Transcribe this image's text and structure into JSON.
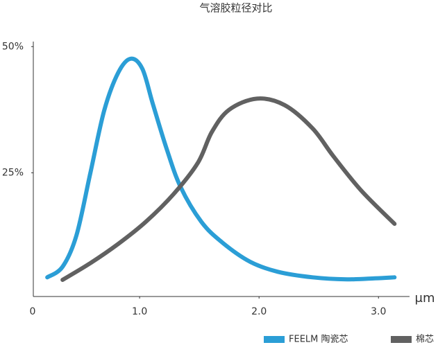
{
  "chart_data": {
    "type": "line",
    "title": "气溶胶粒径对比",
    "x_label": "μm",
    "origin_label": "0",
    "xlim": [
      0.11,
      3.26
    ],
    "ylim": [
      0.5,
      51
    ],
    "xticks": [
      {
        "value": 1,
        "label": "1.0"
      },
      {
        "value": 2,
        "label": "2.0"
      },
      {
        "value": 3,
        "label": "3.0"
      }
    ],
    "yticks": [
      {
        "value": 25,
        "label": "25%"
      },
      {
        "value": 50,
        "label": "50%"
      }
    ],
    "legend": "bottom-right",
    "series": [
      {
        "name": "FEELM 陶瓷芯",
        "color": "#2b9ed6",
        "x": [
          0.227,
          0.355,
          0.471,
          0.587,
          0.703,
          0.82,
          0.924,
          1.023,
          1.11,
          1.227,
          1.343,
          1.517,
          1.692,
          1.924,
          2.157,
          2.448,
          2.738,
          2.971,
          3.134
        ],
        "values": [
          4.3,
          6.4,
          12.6,
          24.9,
          37.3,
          44.8,
          47.6,
          45.6,
          38.7,
          29.7,
          22.2,
          15.3,
          11.2,
          7.4,
          5.4,
          4.3,
          3.9,
          4.1,
          4.3
        ]
      },
      {
        "name": "棉芯",
        "color": "#616161",
        "x": [
          0.355,
          0.587,
          0.82,
          1.052,
          1.285,
          1.488,
          1.605,
          1.75,
          1.983,
          2.215,
          2.448,
          2.622,
          2.855,
          3.134
        ],
        "values": [
          3.8,
          7.1,
          10.9,
          15.3,
          20.8,
          27.0,
          33.1,
          37.5,
          39.7,
          38.4,
          33.8,
          28.3,
          21.5,
          14.9
        ]
      }
    ]
  }
}
